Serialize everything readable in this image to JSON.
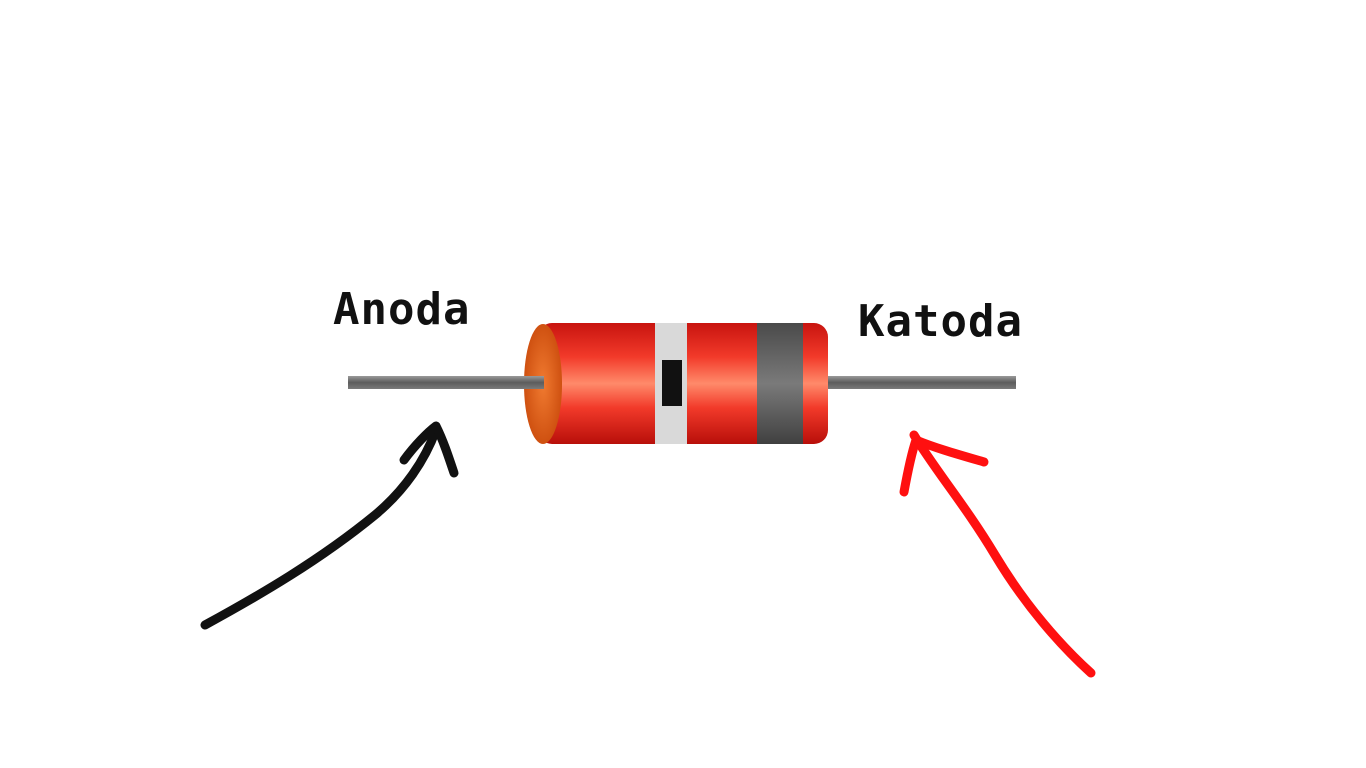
{
  "labels": {
    "anode": "Anoda",
    "cathode": "Katoda"
  },
  "colors": {
    "background": "#ffffff",
    "body_red": "#e8231c",
    "body_highlight": "#ff7a5a",
    "end_cap": "#e05a10",
    "cathode_band": "#5a5a5a",
    "marker_band_light": "#d9d9d9",
    "marker_band_dark": "#111111",
    "lead": "#6e6e6e",
    "anode_arrow": "#111111",
    "cathode_arrow": "#ff1010"
  },
  "icons": {
    "component": "diode-icon",
    "anode_pointer": "hand-drawn-arrow-icon",
    "cathode_pointer": "hand-drawn-arrow-icon"
  }
}
